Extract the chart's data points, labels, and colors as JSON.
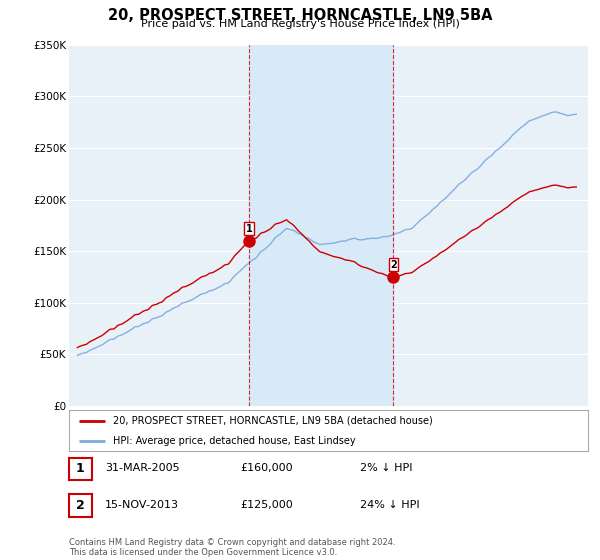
{
  "title": "20, PROSPECT STREET, HORNCASTLE, LN9 5BA",
  "subtitle": "Price paid vs. HM Land Registry's House Price Index (HPI)",
  "legend_line1": "20, PROSPECT STREET, HORNCASTLE, LN9 5BA (detached house)",
  "legend_line2": "HPI: Average price, detached house, East Lindsey",
  "transaction1": {
    "label": "1",
    "date": "31-MAR-2005",
    "price": "£160,000",
    "hpi": "2% ↓ HPI",
    "year": 2005.25,
    "price_val": 160000
  },
  "transaction2": {
    "label": "2",
    "date": "15-NOV-2013",
    "price": "£125,000",
    "hpi": "24% ↓ HPI",
    "year": 2013.88,
    "price_val": 125000
  },
  "footnote": "Contains HM Land Registry data © Crown copyright and database right 2024.\nThis data is licensed under the Open Government Licence v3.0.",
  "red_color": "#cc0000",
  "blue_color": "#7aaadd",
  "shade_color": "#d8eaf8",
  "background_chart": "#e8f0f8",
  "grid_color": "#ffffff",
  "ylim": [
    0,
    350000
  ],
  "xlim": [
    1994.5,
    2025.5
  ]
}
